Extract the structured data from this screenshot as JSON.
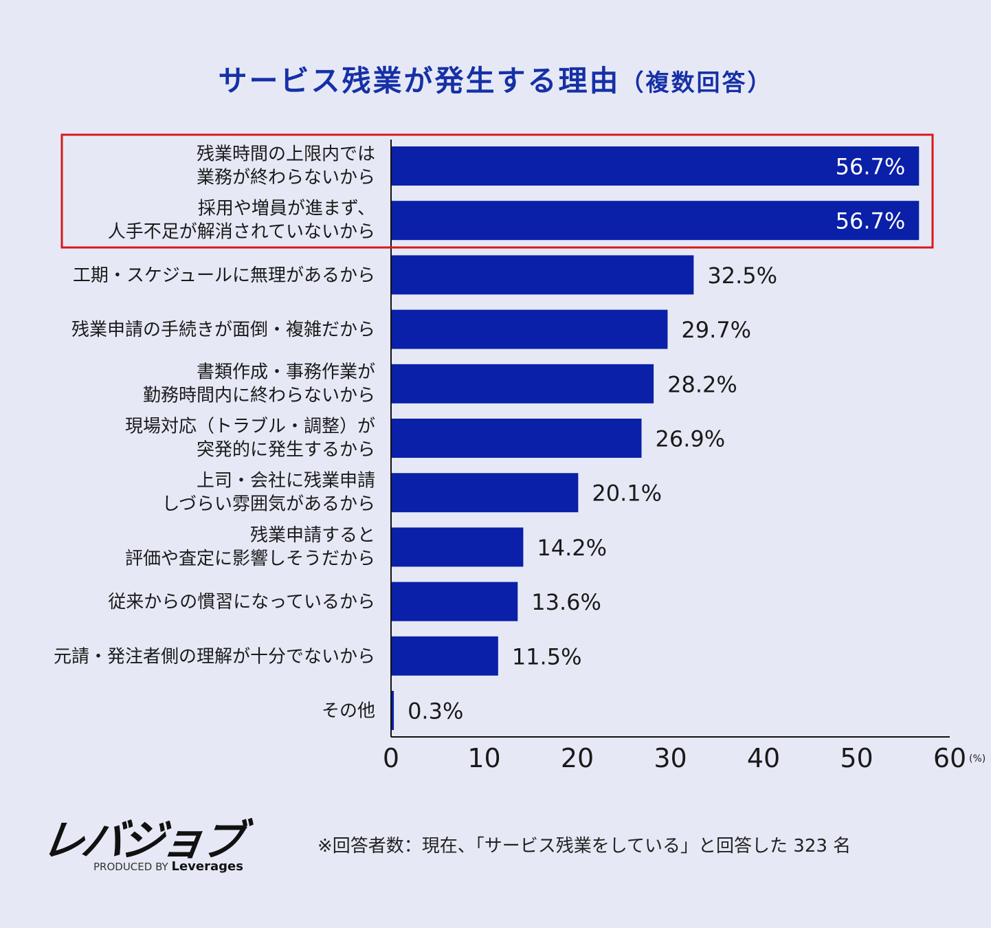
{
  "title": {
    "main": "サービス残業が発生する理由",
    "sub": "（複数回答）"
  },
  "chart_data": {
    "type": "bar",
    "orientation": "horizontal",
    "title": "サービス残業が発生する理由（複数回答）",
    "categories": [
      "残業時間の上限内では\n業務が終わらないから",
      "採用や増員が進まず、\n人手不足が解消されていないから",
      "工期・スケジュールに無理があるから",
      "残業申請の手続きが面倒・複雑だから",
      "書類作成・事務作業が\n勤務時間内に終わらないから",
      "現場対応（トラブル・調整）が\n突発的に発生するから",
      "上司・会社に残業申請\nしづらい雰囲気があるから",
      "残業申請すると\n評価や査定に影響しそうだから",
      "従来からの慣習になっているから",
      "元請・発注者側の理解が十分でないから",
      "その他"
    ],
    "values": [
      56.7,
      56.7,
      32.5,
      29.7,
      28.2,
      26.9,
      20.1,
      14.2,
      13.6,
      11.5,
      0.3
    ],
    "data_labels": [
      "56.7%",
      "56.7%",
      "32.5%",
      "29.7%",
      "28.2%",
      "26.9%",
      "20.1%",
      "14.2%",
      "13.6%",
      "11.5%",
      "0.3%"
    ],
    "xlim": [
      0,
      60
    ],
    "xticks": [
      "0",
      "10",
      "20",
      "30",
      "40",
      "50",
      "60"
    ],
    "xunit": "(%)",
    "grid": false,
    "highlighted": [
      0,
      1
    ],
    "colors": {
      "bar": "#0a20a8",
      "highlight_box": "#d7191c",
      "title": "#1630a6"
    }
  },
  "logo": {
    "text": "レバジョブ",
    "produced_by": "PRODUCED BY",
    "brand": "Leverages"
  },
  "note": "※回答者数：現在、「サービス残業をしている」と回答した 323 名"
}
